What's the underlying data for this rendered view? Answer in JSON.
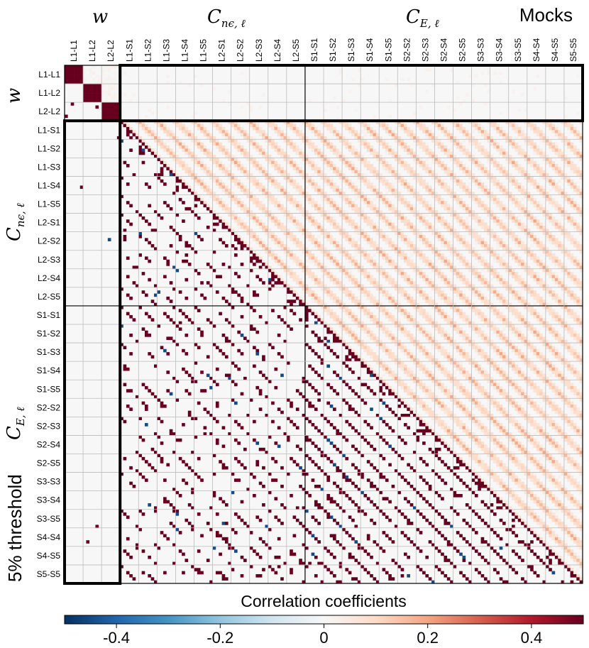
{
  "chart_data": {
    "type": "heatmap",
    "title": "Mocks",
    "annotation": "5% threshold",
    "colorbar": {
      "label": "Correlation coefficients",
      "range": [
        -0.5,
        0.5
      ],
      "ticks": [
        -0.4,
        -0.2,
        0,
        0.2,
        0.4
      ],
      "tick_labels": [
        "-0.4",
        "-0.2",
        "0",
        "0.2",
        "0.4"
      ],
      "colormap": "RdBu_r"
    },
    "groups": [
      {
        "name": "w",
        "sub": "",
        "blocks": 3
      },
      {
        "name": "C",
        "sub": "nϵ, ℓ",
        "blocks": 10
      },
      {
        "name": "C",
        "sub": "E, ℓ",
        "blocks": 15
      }
    ],
    "blocks": [
      "L1-L1",
      "L1-L2",
      "L2-L2",
      "L1-S1",
      "L1-S2",
      "L1-S3",
      "L1-S4",
      "L1-S5",
      "L2-S1",
      "L2-S2",
      "L2-S3",
      "L2-S4",
      "L2-S5",
      "S1-S1",
      "S1-S2",
      "S1-S3",
      "S1-S4",
      "S1-S5",
      "S2-S2",
      "S2-S3",
      "S2-S4",
      "S2-S5",
      "S3-S3",
      "S3-S4",
      "S3-S5",
      "S4-S4",
      "S4-S5",
      "S5-S5"
    ],
    "bins_per_block": 6,
    "upper_triangle": "full correlation matrix (diagonal = 1, off-diagonal bin correlations up to ~0.2)",
    "lower_triangle": "only coefficients exceeding the 5% threshold are shown",
    "diagonal_value": 1
  }
}
